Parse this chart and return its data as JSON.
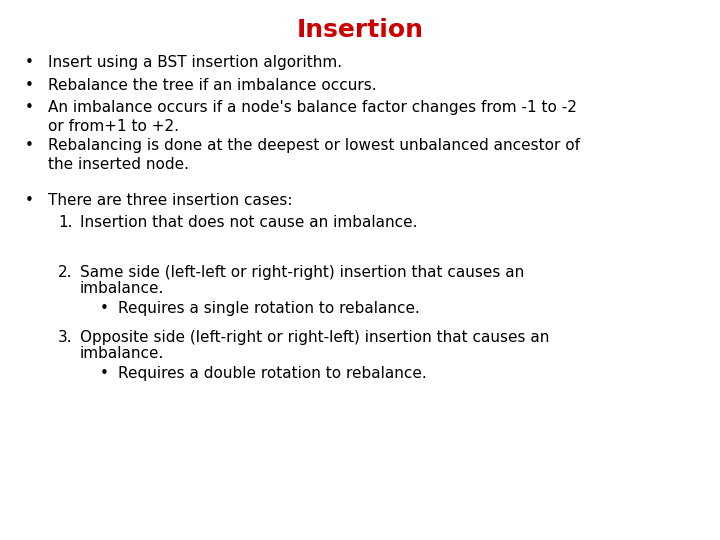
{
  "title": "Insertion",
  "title_color": "#cc0000",
  "title_fontsize": 18,
  "background_color": "#ffffff",
  "text_color": "#000000",
  "font_family": "DejaVu Sans",
  "body_fontsize": 11,
  "small_fontsize": 11,
  "bullet_char": "•",
  "bullet_items": [
    "Insert using a BST insertion algorithm.",
    "Rebalance the tree if an imbalance occurs.",
    "An imbalance occurs if a node's balance factor changes from -1 to -2\nor from+1 to +2.",
    "Rebalancing is done at the deepest or lowest unbalanced ancestor of\nthe inserted node."
  ],
  "section_bullet": "There are three insertion cases:",
  "numbered_items": [
    {
      "num": "1.",
      "text": "Insertion that does not cause an imbalance.",
      "wrap2": null,
      "sub": null
    },
    {
      "num": "2.",
      "text": "Same side (left-left or right-right) insertion that causes an",
      "wrap2": "imbalance.",
      "sub": "Requires a single rotation to rebalance."
    },
    {
      "num": "3.",
      "text": "Opposite side (left-right or right-left) insertion that causes an",
      "wrap2": "imbalance.",
      "sub": "Requires a double rotation to rebalance."
    }
  ]
}
